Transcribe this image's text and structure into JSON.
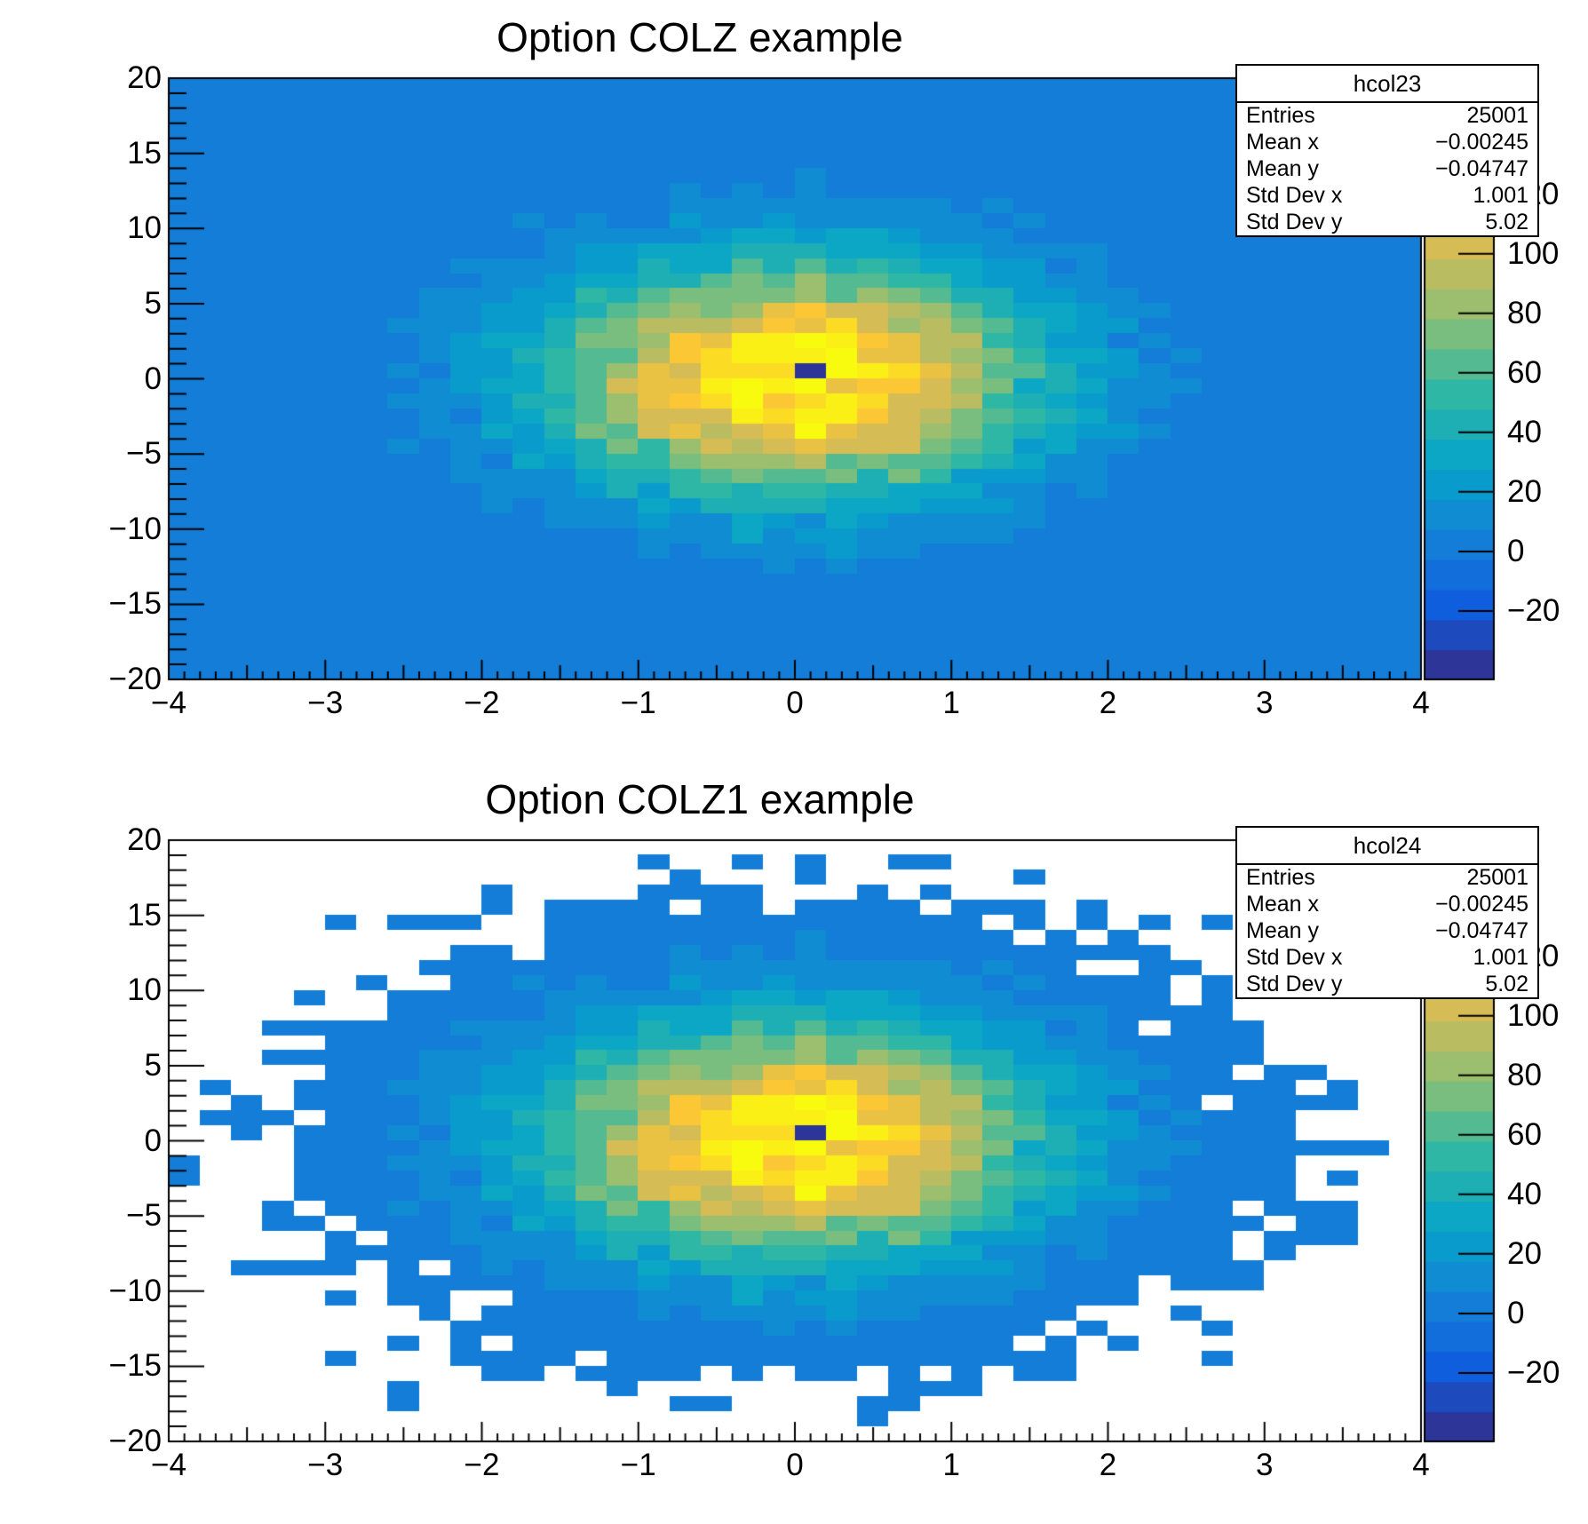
{
  "page": {
    "background": "#ffffff",
    "axis_color": "#000000"
  },
  "palette_colors": [
    "#2d3599",
    "#1d4abd",
    "#0f5edd",
    "#116eda",
    "#137dd7",
    "#108cd2",
    "#0a9bcd",
    "#0ca7c4",
    "#1dafb4",
    "#2eb7a4",
    "#54ba91",
    "#79be7e",
    "#9bbe6f",
    "#babc62",
    "#d6bc55",
    "#e9c244",
    "#fcc734",
    "#fcdb25",
    "#faf016",
    "#f9fb0e"
  ],
  "chart_data": [
    {
      "type": "heatmap",
      "panel": "top",
      "title": "Option COLZ example",
      "hist_name": "hcol23",
      "draw_option": "COLZ",
      "hide_zero_bins": false,
      "x_range": [
        -4,
        4
      ],
      "y_range": [
        -20,
        20
      ],
      "nbins_x": 40,
      "nbins_y": 40,
      "n_contours": 20,
      "x_tick_values": [
        -4,
        -3,
        -2,
        -1,
        0,
        1,
        2,
        3,
        4
      ],
      "x_tick_labels": [
        "−4",
        "−3",
        "−2",
        "−1",
        "0",
        "1",
        "2",
        "3",
        "4"
      ],
      "y_tick_values": [
        -20,
        -15,
        -10,
        -5,
        0,
        5,
        10,
        15,
        20
      ],
      "y_tick_labels": [
        "−20",
        "−15",
        "−10",
        "−5",
        "0",
        "5",
        "10",
        "15",
        "20"
      ],
      "z_tick_values": [
        -20,
        0,
        20,
        40,
        60,
        80,
        100,
        120
      ],
      "z_tick_labels": [
        "−20",
        "0",
        "20",
        "40",
        "60",
        "80",
        "100",
        "120"
      ],
      "legend_position": "right",
      "stats": {
        "name": "hcol23",
        "rows": [
          [
            "Entries",
            "25001"
          ],
          [
            "Mean x",
            "−0.00245"
          ],
          [
            "Mean y",
            "−0.04747"
          ],
          [
            "Std Dev x",
            "1.001"
          ],
          [
            "Std Dev y",
            "5.02"
          ]
        ]
      },
      "distribution": {
        "model": "gaussian2d",
        "entries": 25000,
        "mean_x": 0,
        "mean_y": 0,
        "sigma_x": 1,
        "sigma_y": 5,
        "special_fill": {
          "x": 0,
          "y": 0,
          "weight": -200
        },
        "seed": 19
      }
    },
    {
      "type": "heatmap",
      "panel": "bottom",
      "title": "Option COLZ1 example",
      "hist_name": "hcol24",
      "draw_option": "COLZ1",
      "hide_zero_bins": true,
      "x_range": [
        -4,
        4
      ],
      "y_range": [
        -20,
        20
      ],
      "nbins_x": 40,
      "nbins_y": 40,
      "n_contours": 20,
      "x_tick_values": [
        -4,
        -3,
        -2,
        -1,
        0,
        1,
        2,
        3,
        4
      ],
      "x_tick_labels": [
        "−4",
        "−3",
        "−2",
        "−1",
        "0",
        "1",
        "2",
        "3",
        "4"
      ],
      "y_tick_values": [
        -20,
        -15,
        -10,
        -5,
        0,
        5,
        10,
        15,
        20
      ],
      "y_tick_labels": [
        "−20",
        "−15",
        "−10",
        "−5",
        "0",
        "5",
        "10",
        "15",
        "20"
      ],
      "z_tick_values": [
        -20,
        0,
        20,
        40,
        60,
        80,
        100,
        120
      ],
      "z_tick_labels": [
        "−20",
        "0",
        "20",
        "40",
        "60",
        "80",
        "100",
        "120"
      ],
      "legend_position": "right",
      "stats": {
        "name": "hcol24",
        "rows": [
          [
            "Entries",
            "25001"
          ],
          [
            "Mean x",
            "−0.00245"
          ],
          [
            "Mean y",
            "−0.04747"
          ],
          [
            "Std Dev x",
            "1.001"
          ],
          [
            "Std Dev y",
            "5.02"
          ]
        ]
      },
      "distribution": {
        "model": "gaussian2d",
        "entries": 25000,
        "mean_x": 0,
        "mean_y": 0,
        "sigma_x": 1,
        "sigma_y": 5,
        "special_fill": {
          "x": 0,
          "y": 0,
          "weight": -200
        },
        "seed": 19
      }
    }
  ]
}
